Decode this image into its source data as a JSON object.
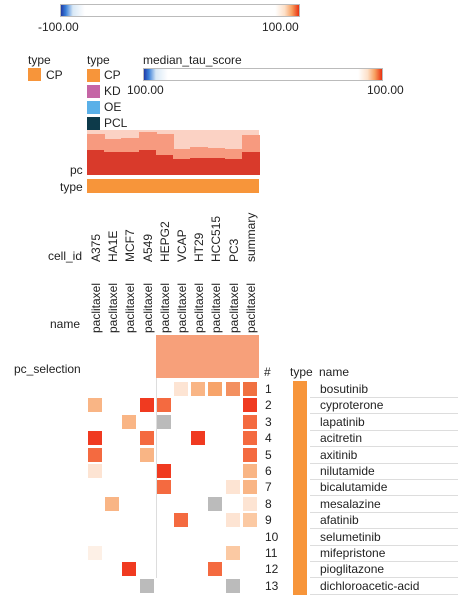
{
  "colors": {
    "cp": "#f7953a",
    "kd": "#c565a5",
    "oe": "#5ab0e8",
    "pcl": "#0d3a4a",
    "pc_dark": "#d93a2b",
    "pc_light": "#f79a7f",
    "pc_bg": "#fbd2c4"
  },
  "top_colorbar": {
    "min_label": "-100.00",
    "max_label": "100.00"
  },
  "legend_left": {
    "title": "type",
    "items": [
      {
        "label": "CP",
        "color": "#f7953a"
      }
    ]
  },
  "legend_right": {
    "title": "type",
    "items": [
      {
        "label": "CP",
        "color": "#f7953a"
      },
      {
        "label": "KD",
        "color": "#c565a5"
      },
      {
        "label": "OE",
        "color": "#5ab0e8"
      },
      {
        "label": "PCL",
        "color": "#0d3a4a"
      }
    ]
  },
  "median_tau": {
    "title": "median_tau_score",
    "min_label": "100.00",
    "max_label": "100.00"
  },
  "row_labels": {
    "pc": "pc",
    "type": "type",
    "cell_id": "cell_id",
    "name": "name",
    "pc_selection": "pc_selection"
  },
  "columns": [
    {
      "cell_id": "A375",
      "name": "paclitaxel",
      "pc_top": 0.9,
      "pc_dark": 0.55
    },
    {
      "cell_id": "HA1E",
      "name": "paclitaxel",
      "pc_top": 0.8,
      "pc_dark": 0.5
    },
    {
      "cell_id": "MCF7",
      "name": "paclitaxel",
      "pc_top": 0.83,
      "pc_dark": 0.5
    },
    {
      "cell_id": "A549",
      "name": "paclitaxel",
      "pc_top": 0.95,
      "pc_dark": 0.55
    },
    {
      "cell_id": "HEPG2",
      "name": "paclitaxel",
      "pc_top": 0.9,
      "pc_dark": 0.45
    },
    {
      "cell_id": "VCAP",
      "name": "paclitaxel",
      "pc_top": 0.58,
      "pc_dark": 0.35
    },
    {
      "cell_id": "HT29",
      "name": "paclitaxel",
      "pc_top": 0.62,
      "pc_dark": 0.38
    },
    {
      "cell_id": "HCC515",
      "name": "paclitaxel",
      "pc_top": 0.6,
      "pc_dark": 0.38
    },
    {
      "cell_id": "PC3",
      "name": "paclitaxel",
      "pc_top": 0.58,
      "pc_dark": 0.35
    },
    {
      "cell_id": "summary",
      "name": "paclitaxel",
      "pc_top": 0.88,
      "pc_dark": 0.52
    }
  ],
  "table_header": {
    "num": "#",
    "type": "type",
    "name": "name"
  },
  "rows": [
    {
      "num": "1",
      "name": "bosutinib",
      "cells": [
        "",
        "",
        "",
        "",
        "",
        "#fde4d3",
        "#f9b585",
        "#f7a46a",
        "#f39060",
        "#f07040"
      ]
    },
    {
      "num": "2",
      "name": "cyproterone",
      "cells": [
        "#f9b585",
        "",
        "",
        "#f03a20",
        "#f46a40",
        "",
        "",
        "",
        "",
        "#f03a20"
      ]
    },
    {
      "num": "3",
      "name": "lapatinib",
      "cells": [
        "",
        "",
        "#f9b585",
        "",
        "#bbbbbb",
        "",
        "",
        "",
        "",
        "#f46a40"
      ]
    },
    {
      "num": "4",
      "name": "acitretin",
      "cells": [
        "#f03a20",
        "",
        "",
        "#f46a40",
        "",
        "",
        "#f03a20",
        "",
        "",
        "#f46a40"
      ]
    },
    {
      "num": "5",
      "name": "axitinib",
      "cells": [
        "#f46a40",
        "",
        "",
        "#f9b585",
        "",
        "",
        "",
        "",
        "",
        "#f46a40"
      ]
    },
    {
      "num": "6",
      "name": "nilutamide",
      "cells": [
        "#fde4d3",
        "",
        "",
        "",
        "#f03a20",
        "",
        "",
        "",
        "",
        "#f9b585"
      ]
    },
    {
      "num": "7",
      "name": "bicalutamide",
      "cells": [
        "",
        "",
        "",
        "",
        "#f46a40",
        "",
        "",
        "",
        "#fde4d3",
        "#f9b585"
      ]
    },
    {
      "num": "8",
      "name": "mesalazine",
      "cells": [
        "",
        "#f9b585",
        "",
        "",
        "",
        "",
        "",
        "#bbbbbb",
        "",
        "#fde4d3"
      ]
    },
    {
      "num": "9",
      "name": "afatinib",
      "cells": [
        "",
        "",
        "",
        "",
        "",
        "#f46a40",
        "",
        "",
        "#fde4d3",
        "#fbc9a3"
      ]
    },
    {
      "num": "10",
      "name": "selumetinib",
      "cells": [
        "",
        "",
        "",
        "",
        "",
        "",
        "",
        "",
        "",
        ""
      ]
    },
    {
      "num": "11",
      "name": "mifepristone",
      "cells": [
        "#fdf0e6",
        "",
        "",
        "",
        "",
        "",
        "",
        "",
        "#fbc9a3",
        ""
      ]
    },
    {
      "num": "12",
      "name": "pioglitazone",
      "cells": [
        "",
        "",
        "#f03a20",
        "",
        "",
        "",
        "",
        "#f46a40",
        "",
        ""
      ]
    },
    {
      "num": "13",
      "name": "dichloroacetic-acid",
      "cells": [
        "",
        "",
        "",
        "#bbbbbb",
        "",
        "",
        "",
        "",
        "#bbbbbb",
        ""
      ]
    }
  ]
}
